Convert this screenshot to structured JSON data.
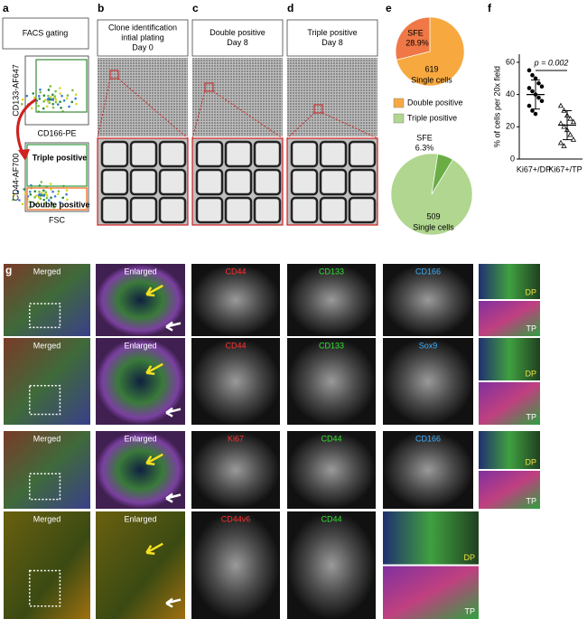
{
  "panel_a": {
    "letter": "a",
    "title": "FACS gating",
    "plot1": {
      "y_label": "CD133-AF647",
      "x_label": "CD166-PE"
    },
    "plot2": {
      "y_label": "CD44-AF700",
      "x_label": "FSC",
      "gates": [
        "Triple positive",
        "Double positive"
      ]
    }
  },
  "panel_b": {
    "letter": "b",
    "title_lines": [
      "Clone identification",
      "intial plating",
      "Day 0"
    ]
  },
  "panel_c": {
    "letter": "c",
    "title_lines": [
      "Double positive",
      "Day 8"
    ]
  },
  "panel_d": {
    "letter": "d",
    "title_lines": [
      "Triple positive",
      "Day 8"
    ]
  },
  "panel_e": {
    "letter": "e",
    "legend": [
      {
        "name": "Double positive",
        "color": "#f7a940"
      },
      {
        "name": "Triple positive",
        "color": "#b0d68f"
      }
    ],
    "pies": [
      {
        "slice_label": "SFE",
        "value": 28.9,
        "value_label": "28.9%",
        "count": 619,
        "count_text": "Single cells",
        "color": "#f7a940",
        "slice_color": "#ef7846"
      },
      {
        "slice_label": "SFE",
        "value": 6.3,
        "value_label": "6.3%",
        "count": 509,
        "count_text": "Single cells",
        "color": "#b0d68f",
        "slice_color": "#6aad45"
      }
    ]
  },
  "panel_f": {
    "letter": "f",
    "chart_data": {
      "type": "scatter",
      "y_label": "% of cells per 20x field",
      "ylim": [
        0,
        65
      ],
      "yticks": [
        0,
        20,
        40,
        60
      ],
      "categories": [
        "Ki67+/DP",
        "Ki67+/TP"
      ],
      "annotation": "p = 0.002",
      "groups": [
        {
          "marker": "circle",
          "values": [
            55,
            52,
            50,
            47,
            45,
            44,
            42,
            40,
            38,
            36,
            33,
            30,
            28
          ],
          "mean": 40,
          "sd": 9
        },
        {
          "marker": "triangle",
          "values": [
            33,
            30,
            27,
            25,
            23,
            22,
            20,
            18,
            15,
            12,
            10,
            8
          ],
          "mean": 21,
          "sd": 9
        }
      ]
    }
  },
  "panel_g": {
    "letter": "g",
    "rows": [
      {
        "labels": [
          "Merged",
          "Enlarged",
          "CD44",
          "CD133",
          "CD166"
        ],
        "label_colors": [
          "#ffffff",
          "#ffffff",
          "#ff3030",
          "#30e030",
          "#40b0ff"
        ],
        "insets": [
          "DP",
          "TP"
        ]
      },
      {
        "labels": [
          "Merged",
          "Enlarged",
          "CD44",
          "CD133",
          "Sox9"
        ],
        "label_colors": [
          "#ffffff",
          "#ffffff",
          "#ff3030",
          "#30e030",
          "#40b0ff"
        ],
        "insets": [
          "DP",
          "TP"
        ]
      },
      {
        "labels": [
          "Merged",
          "Enlarged",
          "Ki67",
          "CD44",
          "CD166"
        ],
        "label_colors": [
          "#ffffff",
          "#ffffff",
          "#ff3030",
          "#30e030",
          "#40b0ff"
        ],
        "insets": [
          "DP",
          "TP"
        ]
      },
      {
        "labels": [
          "Merged",
          "Enlarged",
          "CD44v6",
          "CD44"
        ],
        "label_colors": [
          "#ffffff",
          "#ffffff",
          "#ff3030",
          "#30e030"
        ],
        "insets": [
          "DP",
          "TP"
        ]
      }
    ]
  }
}
